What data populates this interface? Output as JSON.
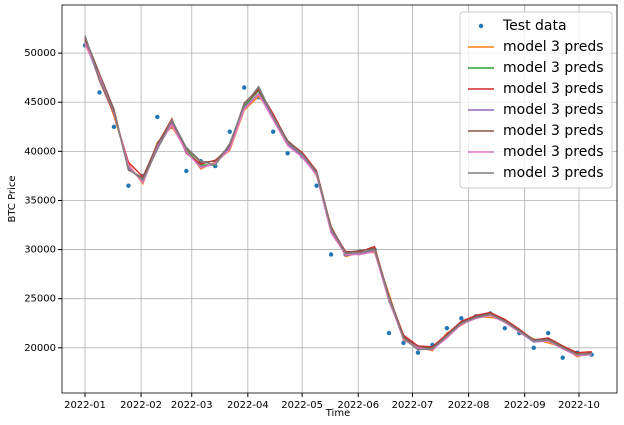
{
  "chart_data": {
    "type": "line",
    "xlabel": "Time",
    "ylabel": "BTC Price",
    "x": [
      0,
      8,
      16,
      24,
      32,
      40,
      48,
      56,
      64,
      72,
      80,
      88,
      96,
      104,
      112,
      120,
      128,
      136,
      144,
      152,
      160,
      168,
      176,
      184,
      192,
      200,
      208,
      216,
      224,
      232,
      240,
      248,
      256,
      264,
      272,
      280
    ],
    "xlim": [
      -12.7,
      294
    ],
    "xticks": [
      {
        "value": 0,
        "label": "2022-01"
      },
      {
        "value": 31,
        "label": "2022-02"
      },
      {
        "value": 59,
        "label": "2022-03"
      },
      {
        "value": 90,
        "label": "2022-04"
      },
      {
        "value": 120,
        "label": "2022-05"
      },
      {
        "value": 151,
        "label": "2022-06"
      },
      {
        "value": 181,
        "label": "2022-07"
      },
      {
        "value": 212,
        "label": "2022-08"
      },
      {
        "value": 243,
        "label": "2022-09"
      },
      {
        "value": 273,
        "label": "2022-10"
      }
    ],
    "ylim": [
      15400,
      54900
    ],
    "yticks": [
      20000,
      25000,
      30000,
      35000,
      40000,
      45000,
      50000
    ],
    "grid": true,
    "legend": "upper right",
    "series": [
      {
        "name": "Test data",
        "style": "markers",
        "color": "#1f77b4",
        "values": [
          50800,
          46000,
          42500,
          36500,
          37500,
          43500,
          42500,
          38000,
          39000,
          38500,
          42000,
          46500,
          45500,
          42000,
          39800,
          39500,
          36500,
          29500,
          29500,
          29800,
          30000,
          21500,
          20500,
          19500,
          20300,
          22000,
          23000,
          23200,
          23500,
          22000,
          21500,
          20000,
          21500,
          19000,
          19500,
          19300
        ]
      },
      {
        "name": "model 3 preds",
        "style": "line",
        "color": "#ff7f0e",
        "values": [
          50900,
          47800,
          43600,
          38700,
          36700,
          40900,
          42500,
          40200,
          38200,
          38900,
          40100,
          44200,
          45600,
          43700,
          40600,
          39700,
          37500,
          32400,
          29300,
          29700,
          29700,
          25500,
          20800,
          20100,
          19700,
          21500,
          22300,
          23200,
          23100,
          22900,
          21600,
          20900,
          20500,
          20100,
          19100,
          19500
        ]
      },
      {
        "name": "model 3 preds",
        "style": "line",
        "color": "#2ca02c",
        "values": [
          51300,
          47700,
          44200,
          38300,
          37200,
          40300,
          42800,
          40100,
          38600,
          38600,
          40700,
          44600,
          46200,
          43300,
          40900,
          39500,
          37900,
          31800,
          29600,
          29500,
          30200,
          24700,
          21200,
          19900,
          20000,
          21000,
          22600,
          23000,
          23500,
          22600,
          21800,
          20600,
          20900,
          19900,
          19400,
          19300
        ]
      },
      {
        "name": "model 3 preds",
        "style": "line",
        "color": "#d62728",
        "values": [
          51500,
          47200,
          43800,
          38900,
          37400,
          40700,
          43300,
          39800,
          38700,
          39100,
          40300,
          44800,
          46300,
          43800,
          41000,
          39900,
          38000,
          32200,
          29800,
          29800,
          30300,
          25200,
          21300,
          20200,
          20100,
          21400,
          22700,
          23300,
          23600,
          22900,
          21900,
          20800,
          21000,
          20200,
          19500,
          19600
        ]
      },
      {
        "name": "model 3 preds",
        "style": "line",
        "color": "#9467bd",
        "values": [
          51100,
          47400,
          44100,
          38400,
          36900,
          40600,
          42900,
          39900,
          38400,
          38700,
          40400,
          44400,
          45900,
          43400,
          40700,
          39500,
          37700,
          31900,
          29400,
          29600,
          29900,
          24900,
          20900,
          19900,
          19800,
          21100,
          22400,
          23000,
          23300,
          22600,
          21600,
          20600,
          20700,
          19900,
          19200,
          19300
        ]
      },
      {
        "name": "model 3 preds",
        "style": "line",
        "color": "#8c564b",
        "values": [
          51600,
          47900,
          44300,
          38100,
          37300,
          40800,
          43100,
          40300,
          38900,
          39000,
          40600,
          44900,
          46400,
          43600,
          41100,
          39800,
          37900,
          32300,
          29700,
          29900,
          30100,
          25300,
          21100,
          20100,
          20000,
          21300,
          22600,
          23200,
          23500,
          22800,
          21800,
          20800,
          20900,
          20100,
          19300,
          19500
        ]
      },
      {
        "name": "model 3 preds",
        "style": "line",
        "color": "#e377c2",
        "values": [
          51000,
          47600,
          43900,
          38600,
          36800,
          40400,
          42700,
          40000,
          38300,
          38800,
          40200,
          44300,
          45800,
          43200,
          40600,
          39400,
          37600,
          31700,
          29500,
          29500,
          29800,
          24800,
          20900,
          20000,
          19800,
          21000,
          22400,
          23000,
          23300,
          22600,
          21600,
          20700,
          20700,
          19900,
          19200,
          19300
        ]
      },
      {
        "name": "model 3 preds",
        "style": "line",
        "color": "#7f7f7f",
        "values": [
          51800,
          47300,
          44000,
          38200,
          37100,
          40200,
          43200,
          40400,
          39000,
          38600,
          40800,
          44700,
          46600,
          43500,
          40900,
          39700,
          37800,
          32100,
          29600,
          29700,
          30000,
          25100,
          21000,
          19800,
          19900,
          21200,
          22500,
          23100,
          23400,
          22700,
          21700,
          20700,
          20800,
          20000,
          19300,
          19400
        ]
      }
    ]
  }
}
